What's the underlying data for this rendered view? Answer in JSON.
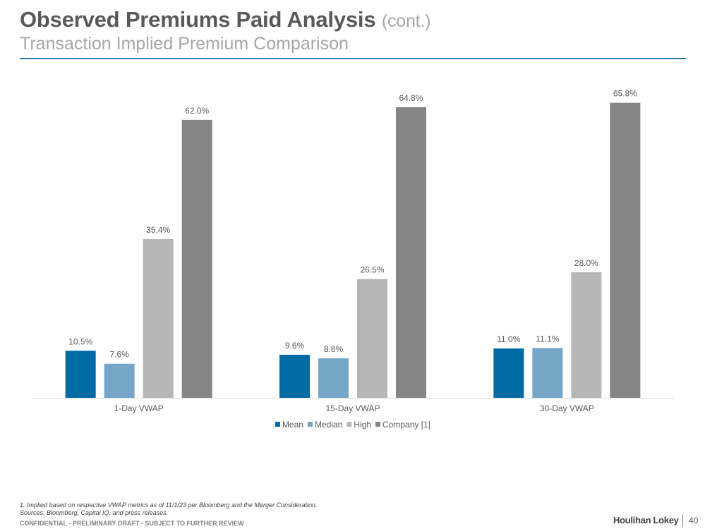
{
  "header": {
    "title": "Observed Premiums Paid Analysis",
    "title_suffix": "(cont.)",
    "subtitle": "Transaction Implied Premium Comparison"
  },
  "chart_data": {
    "type": "bar",
    "title": "",
    "xlabel": "",
    "ylabel": "",
    "ylim": [
      0,
      70
    ],
    "grid": false,
    "legend_position": "bottom",
    "categories": [
      "1-Day VWAP",
      "15-Day VWAP",
      "30-Day VWAP"
    ],
    "series": [
      {
        "name": "Mean",
        "color": "#006aa5",
        "values": [
          10.5,
          9.6,
          11.0
        ],
        "labels": [
          "10.5%",
          "9.6%",
          "11.0%"
        ]
      },
      {
        "name": "Median",
        "color": "#76a6c7",
        "values": [
          7.6,
          8.8,
          11.1
        ],
        "labels": [
          "7.6%",
          "8.8%",
          "11.1%"
        ]
      },
      {
        "name": "High",
        "color": "#b6b6b6",
        "values": [
          35.4,
          26.5,
          28.0
        ],
        "labels": [
          "35.4%",
          "26.5%",
          "28.0%"
        ]
      },
      {
        "name": "Company [1]",
        "color": "#858585",
        "values": [
          62.0,
          64.8,
          65.8
        ],
        "labels": [
          "62.0%",
          "64.8%",
          "65.8%"
        ]
      }
    ]
  },
  "footer": {
    "note1": "1. Implied based on respective VWAP metrics as of 11/1/23 per Bloomberg and the Merger Consideration.",
    "note2": "Sources: Bloomberg, Capital IQ, and press releases.",
    "confidential": "CONFIDENTIAL - PRELIMINARY DRAFT - SUBJECT TO FURTHER REVIEW",
    "brand": "Houlihan Lokey",
    "page_number": "40"
  }
}
